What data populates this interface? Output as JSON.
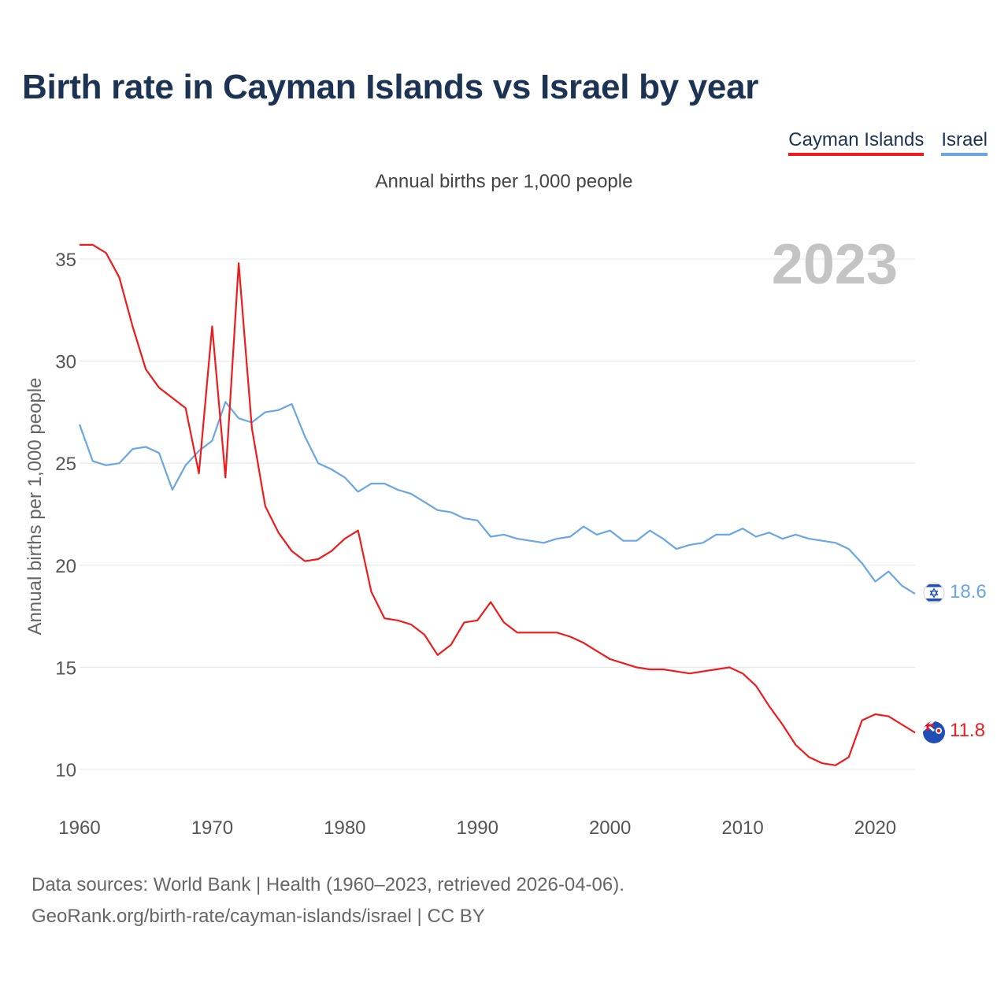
{
  "title": "Birth rate in Cayman Islands vs Israel by year",
  "legend": [
    {
      "label": "Cayman Islands",
      "color": "#ef1c1c"
    },
    {
      "label": "Israel",
      "color": "#6aa6e4"
    }
  ],
  "subtitle": "Annual births per 1,000 people",
  "year_overlay": "2023",
  "source": {
    "line1": "Data sources: World Bank | Health (1960–2023, retrieved 2026-04-06).",
    "line2": "GeoRank.org/birth-rate/cayman-islands/israel | CC BY"
  },
  "chart_data": {
    "type": "line",
    "title": "Birth rate in Cayman Islands vs Israel by year",
    "xlabel": "",
    "ylabel": "Annual births per 1,000 people",
    "xlim": [
      1960,
      2023
    ],
    "ylim": [
      8,
      36
    ],
    "xticks": [
      1960,
      1970,
      1980,
      1990,
      2000,
      2010,
      2020
    ],
    "yticks": [
      10,
      15,
      20,
      25,
      30,
      35
    ],
    "grid": true,
    "legend_position": "top-right",
    "x": [
      1960,
      1961,
      1962,
      1963,
      1964,
      1965,
      1966,
      1967,
      1968,
      1969,
      1970,
      1971,
      1972,
      1973,
      1974,
      1975,
      1976,
      1977,
      1978,
      1979,
      1980,
      1981,
      1982,
      1983,
      1984,
      1985,
      1986,
      1987,
      1988,
      1989,
      1990,
      1991,
      1992,
      1993,
      1994,
      1995,
      1996,
      1997,
      1998,
      1999,
      2000,
      2001,
      2002,
      2003,
      2004,
      2005,
      2006,
      2007,
      2008,
      2009,
      2010,
      2011,
      2012,
      2013,
      2014,
      2015,
      2016,
      2017,
      2018,
      2019,
      2020,
      2021,
      2022,
      2023
    ],
    "series": [
      {
        "name": "Cayman Islands",
        "color": "#ef1c1c",
        "end_label": "11.8",
        "values": [
          35.7,
          35.7,
          35.3,
          34.1,
          31.7,
          29.6,
          28.7,
          28.2,
          27.7,
          24.5,
          31.7,
          24.3,
          34.8,
          26.7,
          22.9,
          21.6,
          20.7,
          20.2,
          20.3,
          20.7,
          21.3,
          21.7,
          18.7,
          17.4,
          17.3,
          17.1,
          16.6,
          15.6,
          16.1,
          17.2,
          17.3,
          18.2,
          17.2,
          16.7,
          16.7,
          16.7,
          16.7,
          16.5,
          16.2,
          15.8,
          15.4,
          15.2,
          15.0,
          14.9,
          14.9,
          14.8,
          14.7,
          14.8,
          14.9,
          15.0,
          14.7,
          14.1,
          13.1,
          12.2,
          11.2,
          10.6,
          10.3,
          10.2,
          10.6,
          12.4,
          12.7,
          12.6,
          12.2,
          11.8
        ]
      },
      {
        "name": "Israel",
        "color": "#6aa6e4",
        "end_label": "18.6",
        "values": [
          26.9,
          25.1,
          24.9,
          25.0,
          25.7,
          25.8,
          25.5,
          23.7,
          24.9,
          25.6,
          26.1,
          28.0,
          27.2,
          27.0,
          27.5,
          27.6,
          27.9,
          26.3,
          25.0,
          24.7,
          24.3,
          23.6,
          24.0,
          24.0,
          23.7,
          23.5,
          23.1,
          22.7,
          22.6,
          22.3,
          22.2,
          21.4,
          21.5,
          21.3,
          21.2,
          21.1,
          21.3,
          21.4,
          21.9,
          21.5,
          21.7,
          21.2,
          21.2,
          21.7,
          21.3,
          20.8,
          21.0,
          21.1,
          21.5,
          21.5,
          21.8,
          21.4,
          21.6,
          21.3,
          21.5,
          21.3,
          21.2,
          21.1,
          20.8,
          20.1,
          19.2,
          19.7,
          19.0,
          18.6
        ]
      }
    ]
  }
}
